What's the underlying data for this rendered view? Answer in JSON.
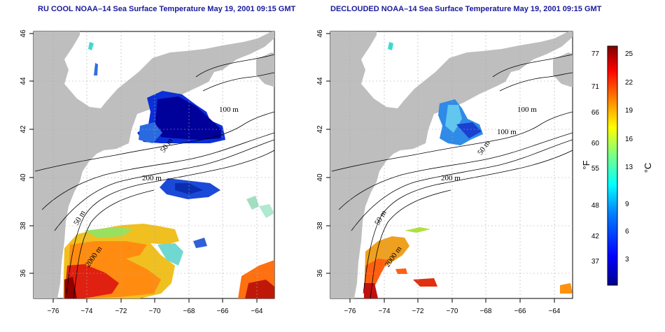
{
  "panels": [
    {
      "id": "left",
      "title": "RU COOL NOAA–14 Sea Surface Temperature May 19, 2001 09:15 GMT",
      "contour_labels": [
        "100 m",
        "50 m",
        "200 m",
        "50 m",
        "2000 m"
      ]
    },
    {
      "id": "right",
      "title": "DECLOUDED NOAA–14 Sea Surface Temperature May 19, 2001 09:15 GMT",
      "contour_labels": [
        "100 m",
        "100 m",
        "50 m",
        "200 m",
        "50 m",
        "2000 m"
      ]
    }
  ],
  "axes": {
    "lon_ticks": [
      "−76",
      "−74",
      "−72",
      "−70",
      "−68",
      "−66",
      "−64"
    ],
    "lat_ticks": [
      "36",
      "38",
      "40",
      "42",
      "44",
      "46"
    ],
    "lon_range": [
      -77,
      -63
    ],
    "lat_range": [
      35,
      46
    ]
  },
  "colorbar": {
    "fahrenheit_ticks": [
      "77",
      "71",
      "66",
      "60",
      "55",
      "48",
      "42",
      "37"
    ],
    "celsius_ticks": [
      "25",
      "22",
      "19",
      "16",
      "13",
      "9",
      "6",
      "3"
    ],
    "fahrenheit_label": "°F",
    "celsius_label": "°C",
    "colors": [
      "#00008f",
      "#0000ff",
      "#0080ff",
      "#00ffff",
      "#80ff80",
      "#ffff00",
      "#ff8000",
      "#ff0000",
      "#800000"
    ]
  },
  "colors": {
    "land": "#bebebe",
    "title": "#1a1a9c",
    "grid": "#aaaaaa"
  }
}
